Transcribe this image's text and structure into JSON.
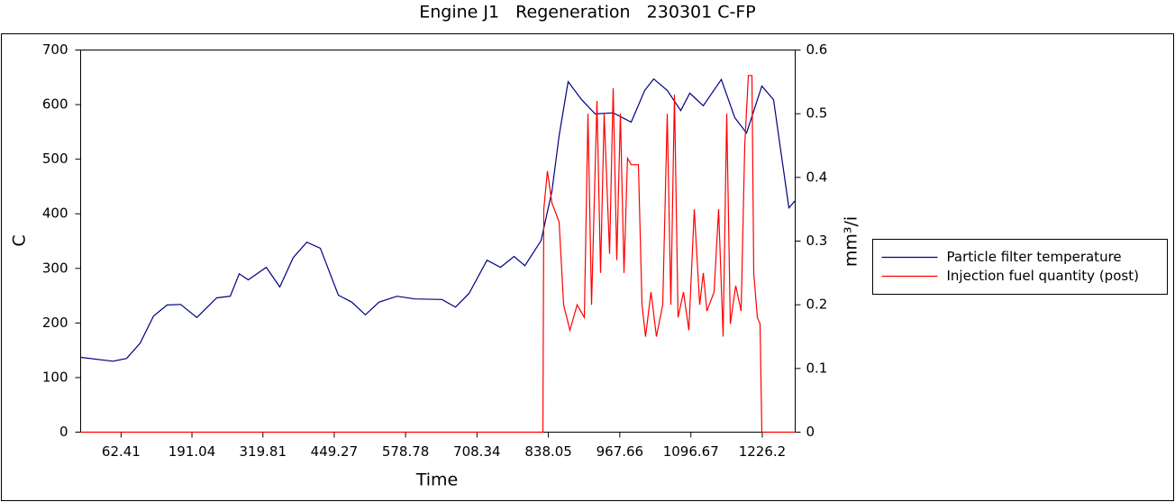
{
  "chart_data": {
    "type": "line",
    "title": "Engine J1   Regeneration   230301 C-FP",
    "x_label": "Time",
    "y_label": "C",
    "y2_label": "mm³/i",
    "xlim": [
      -11,
      1286
    ],
    "xticks": [
      62.41,
      191.04,
      319.81,
      449.27,
      578.78,
      708.34,
      838.05,
      967.66,
      1096.67,
      1226.2
    ],
    "ylim": [
      0,
      700
    ],
    "yticks": [
      0,
      100,
      200,
      300,
      400,
      500,
      600,
      700
    ],
    "y2lim": [
      0,
      0.6
    ],
    "y2ticks": [
      0,
      0.1,
      0.2,
      0.3,
      0.4,
      0.5,
      0.6
    ],
    "legend": "right",
    "series": [
      {
        "name": "Particle filter temperature",
        "color": "#000080",
        "x": [
          -11,
          47.9,
          72.4,
          97,
          121.5,
          146,
          170.6,
          200,
          236,
          260.5,
          276.9,
          293.2,
          325.9,
          350.5,
          375,
          399.5,
          424.1,
          456.8,
          481.3,
          505.8,
          530.4,
          563.1,
          595.8,
          644.9,
          669.4,
          694,
          726.6,
          751.2,
          775.7,
          795.3,
          824.8,
          844.4,
          857.5,
          873.8,
          898.4,
          922.9,
          955.6,
          988.3,
          1012.9,
          1029.2,
          1053.8,
          1078.3,
          1094.7,
          1119.2,
          1151.9,
          1176.4,
          1197.7,
          1225.5,
          1246.8,
          1258.2,
          1274.6,
          1286
        ],
        "values": [
          137,
          130,
          135,
          163,
          213,
          233,
          234,
          210,
          246,
          249,
          290,
          279,
          302,
          266,
          320,
          348,
          337,
          251,
          238,
          215,
          238,
          249,
          244,
          243,
          229,
          254,
          315,
          302,
          322,
          305,
          351,
          441,
          543,
          642,
          609,
          583,
          585,
          568,
          626,
          647,
          626,
          589,
          621,
          598,
          646,
          576,
          548,
          634,
          609,
          527,
          411,
          424
        ]
      },
      {
        "name": "Injection fuel quantity (post)",
        "color": "#ff0000",
        "axis": "y2",
        "x": [
          -11,
          828.1,
          829.7,
          836.3,
          844.4,
          857.5,
          865.7,
          877.1,
          890.2,
          903.3,
          909.8,
          916.3,
          926.2,
          932.7,
          939.2,
          949,
          955.6,
          962.1,
          968.7,
          975.2,
          981.7,
          988.3,
          1001.4,
          1007.9,
          1014.4,
          1024.3,
          1034.1,
          1045.5,
          1053.8,
          1060.3,
          1066.8,
          1073.4,
          1083.2,
          1093,
          1102.8,
          1112.6,
          1119.2,
          1125.7,
          1138.8,
          1147,
          1155.2,
          1161.7,
          1168.3,
          1178.1,
          1187.9,
          1194.4,
          1201,
          1207.5,
          1210.8,
          1217.3,
          1222.2,
          1225.5,
          1286
        ],
        "values": [
          0,
          0,
          0.35,
          0.41,
          0.36,
          0.33,
          0.2,
          0.16,
          0.2,
          0.18,
          0.5,
          0.2,
          0.52,
          0.25,
          0.5,
          0.28,
          0.54,
          0.27,
          0.5,
          0.25,
          0.43,
          0.42,
          0.42,
          0.2,
          0.15,
          0.22,
          0.15,
          0.2,
          0.5,
          0.2,
          0.53,
          0.18,
          0.22,
          0.16,
          0.35,
          0.2,
          0.25,
          0.19,
          0.22,
          0.35,
          0.15,
          0.5,
          0.17,
          0.23,
          0.19,
          0.45,
          0.56,
          0.56,
          0.25,
          0.18,
          0.17,
          0,
          0
        ]
      }
    ]
  }
}
